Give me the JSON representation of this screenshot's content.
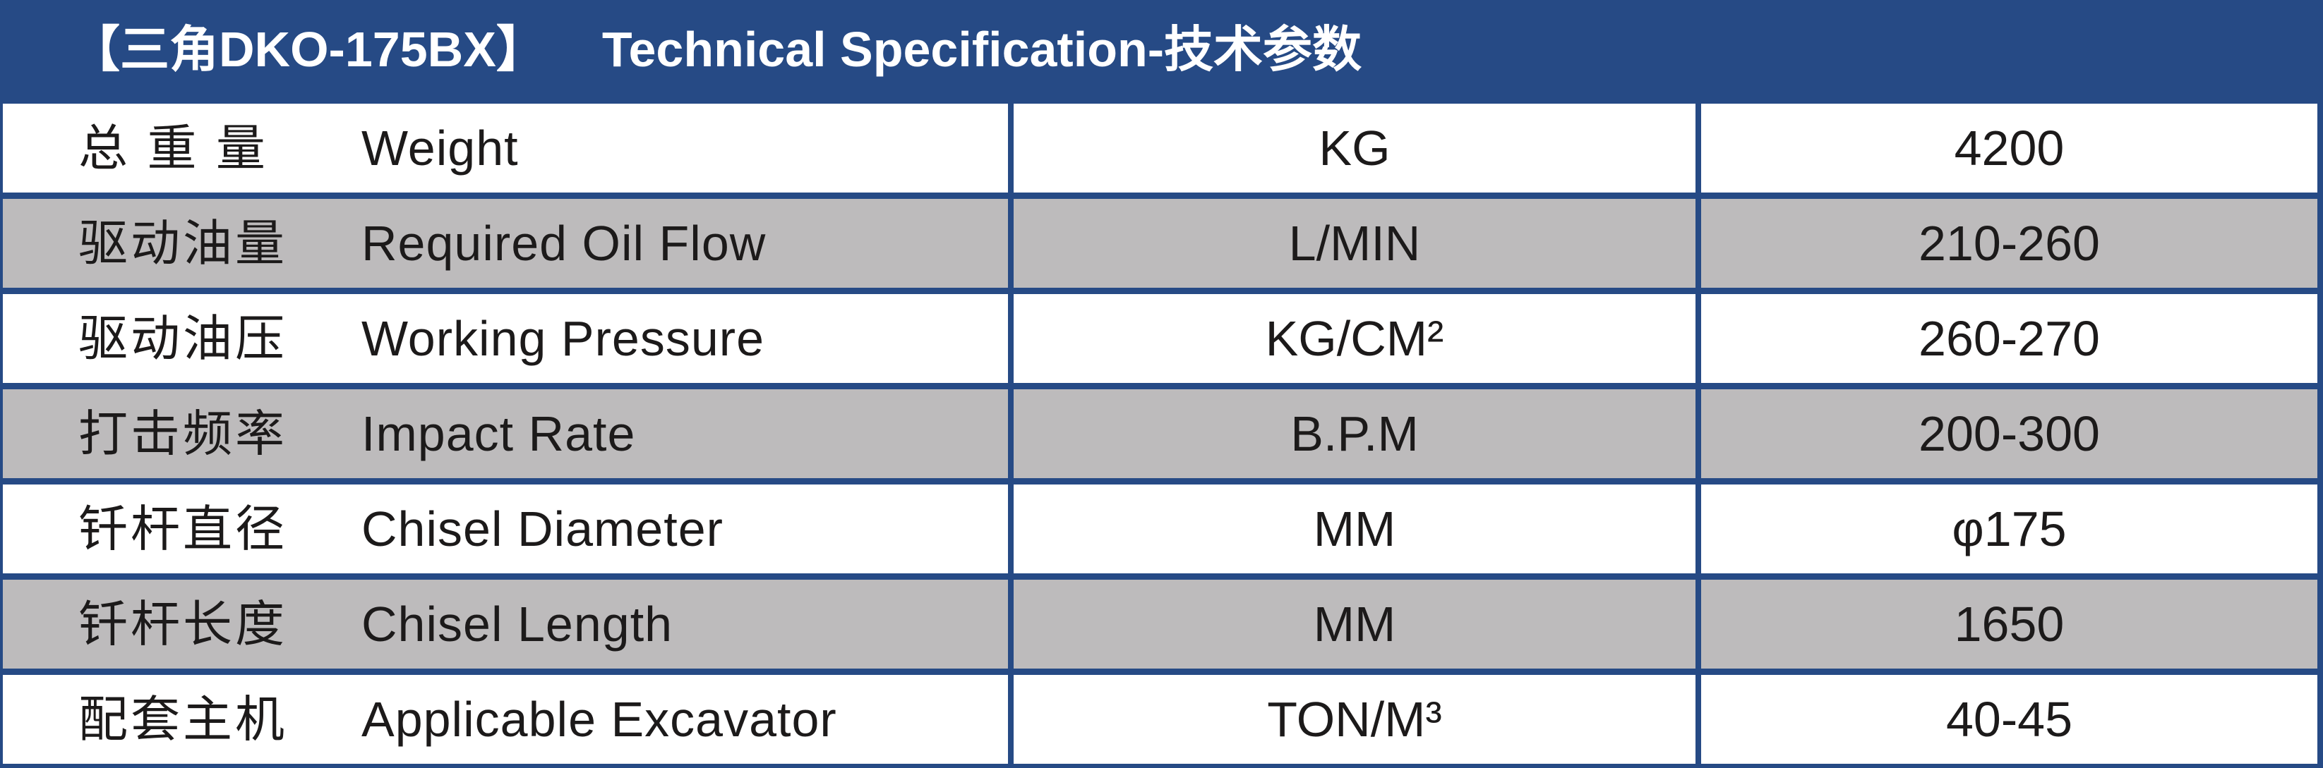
{
  "header": {
    "model": "【三角DKO-175BX】",
    "title": "Technical Specification-技术参数"
  },
  "colors": {
    "header_bg": "#264a85",
    "row_gray": "#bdbbbc",
    "row_white": "#ffffff"
  },
  "rows": [
    {
      "zh": "总 重 量",
      "en": "Weight",
      "unit": "KG",
      "value": "4200"
    },
    {
      "zh": "驱动油量",
      "en": "Required Oil Flow",
      "unit": "L/MIN",
      "value": "210-260"
    },
    {
      "zh": "驱动油压",
      "en": "Working Pressure",
      "unit": "KG/CM²",
      "value": "260-270"
    },
    {
      "zh": "打击频率",
      "en": "Impact Rate",
      "unit": "B.P.M",
      "value": "200-300"
    },
    {
      "zh": "钎杆直径",
      "en": "Chisel  Diameter",
      "unit": "MM",
      "value": "φ175"
    },
    {
      "zh": "钎杆长度",
      "en": "Chisel  Length",
      "unit": "MM",
      "value": "1650"
    },
    {
      "zh": "配套主机",
      "en": "Applicable Excavator",
      "unit": "TON/M³",
      "value": "40-45"
    }
  ]
}
